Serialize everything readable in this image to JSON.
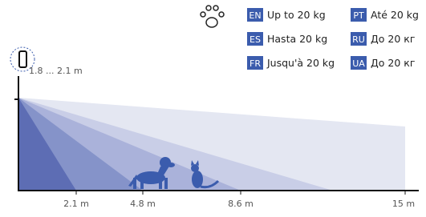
{
  "sensor_height": "1.8 ... 2.1 m",
  "distances": [
    "2.1 m",
    "4.8 m",
    "8.6 m",
    "15 m"
  ],
  "legend": [
    {
      "code": "EN",
      "text": "Up to 20 kg"
    },
    {
      "code": "PT",
      "text": "Até 20 kg"
    },
    {
      "code": "ES",
      "text": "Hasta 20 kg"
    },
    {
      "code": "RU",
      "text": "До 20 кг"
    },
    {
      "code": "FR",
      "text": "Jusqu'à 20 kg"
    },
    {
      "code": "UA",
      "text": "До 20 кг"
    }
  ]
}
